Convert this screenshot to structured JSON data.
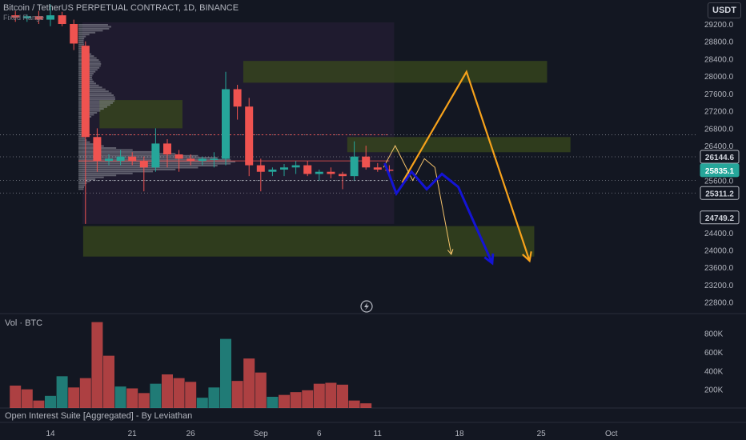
{
  "header": {
    "title": "Bitcoin / TetherUS PERPETUAL CONTRACT, 1D, BINANCE",
    "subtitle": "Fixed Range",
    "currency_button": "USDT"
  },
  "colors": {
    "background": "#131722",
    "up": "#26a69a",
    "down": "#ef5350",
    "zone": "#3a4a1c",
    "orange_path": "#f7a21b",
    "blue_path": "#1414d4",
    "profile": "#9598a1"
  },
  "volume_pane": {
    "title": "Vol · BTC"
  },
  "oi_pane": {
    "title": "Open Interest Suite [Aggregated] - By Leviathan"
  },
  "chart_data": [
    {
      "type": "candlestick",
      "title": "Bitcoin / TetherUS PERPETUAL CONTRACT, 1D, BINANCE",
      "ylim": [
        22500,
        29400
      ],
      "y_ticks": [
        29200,
        28800,
        28400,
        28000,
        27600,
        27200,
        26800,
        26400,
        25600,
        24400,
        24000,
        23600,
        23200,
        22800
      ],
      "price_labels": [
        {
          "value": "26144.6",
          "price": 26144.6,
          "style": "level"
        },
        {
          "value": "25835.1",
          "price": 25835.1,
          "style": "current"
        },
        {
          "value": "25311.2",
          "price": 25311.2,
          "style": "level"
        },
        {
          "value": "24749.2",
          "price": 24749.2,
          "style": "level"
        }
      ],
      "x_ticks": [
        {
          "label": "14",
          "day": 14
        },
        {
          "label": "21",
          "day": 21
        },
        {
          "label": "26",
          "day": 26
        },
        {
          "label": "Sep",
          "day": 32
        },
        {
          "label": "6",
          "day": 37
        },
        {
          "label": "11",
          "day": 42
        },
        {
          "label": "18",
          "day": 49
        },
        {
          "label": "25",
          "day": 56
        },
        {
          "label": "Oct",
          "day": 62
        }
      ],
      "candles": [
        {
          "day": 11,
          "o": 29400,
          "h": 29500,
          "l": 29250,
          "c": 29350
        },
        {
          "day": 12,
          "o": 29330,
          "h": 29420,
          "l": 29250,
          "c": 29380
        },
        {
          "day": 13,
          "o": 29380,
          "h": 29500,
          "l": 29200,
          "c": 29300
        },
        {
          "day": 14,
          "o": 29300,
          "h": 29650,
          "l": 29150,
          "c": 29400
        },
        {
          "day": 15,
          "o": 29400,
          "h": 29480,
          "l": 29150,
          "c": 29200
        },
        {
          "day": 16,
          "o": 29200,
          "h": 29300,
          "l": 28600,
          "c": 28750
        },
        {
          "day": 17,
          "o": 28700,
          "h": 28800,
          "l": 24600,
          "c": 26600
        },
        {
          "day": 18,
          "o": 26600,
          "h": 26800,
          "l": 25800,
          "c": 26050
        },
        {
          "day": 19,
          "o": 26050,
          "h": 26200,
          "l": 25950,
          "c": 26100
        },
        {
          "day": 20,
          "o": 26050,
          "h": 26300,
          "l": 25950,
          "c": 26150
        },
        {
          "day": 21,
          "o": 26150,
          "h": 26250,
          "l": 25950,
          "c": 26050
        },
        {
          "day": 22,
          "o": 26050,
          "h": 26150,
          "l": 25350,
          "c": 25900
        },
        {
          "day": 23,
          "o": 25900,
          "h": 26800,
          "l": 25800,
          "c": 26450
        },
        {
          "day": 24,
          "o": 26450,
          "h": 26550,
          "l": 25900,
          "c": 26200
        },
        {
          "day": 25,
          "o": 26200,
          "h": 26300,
          "l": 25800,
          "c": 26100
        },
        {
          "day": 26,
          "o": 26100,
          "h": 26200,
          "l": 25950,
          "c": 26050
        },
        {
          "day": 27,
          "o": 26050,
          "h": 26150,
          "l": 25950,
          "c": 26100
        },
        {
          "day": 28,
          "o": 26100,
          "h": 26250,
          "l": 25900,
          "c": 26100
        },
        {
          "day": 29,
          "o": 26100,
          "h": 28100,
          "l": 25950,
          "c": 27700
        },
        {
          "day": 30,
          "o": 27700,
          "h": 27800,
          "l": 27000,
          "c": 27300
        },
        {
          "day": 31,
          "o": 27300,
          "h": 27500,
          "l": 25700,
          "c": 25950
        },
        {
          "day": 32,
          "o": 25950,
          "h": 26100,
          "l": 25350,
          "c": 25800
        },
        {
          "day": 33,
          "o": 25800,
          "h": 25900,
          "l": 25700,
          "c": 25850
        },
        {
          "day": 34,
          "o": 25850,
          "h": 25980,
          "l": 25700,
          "c": 25900
        },
        {
          "day": 35,
          "o": 25900,
          "h": 26050,
          "l": 25750,
          "c": 25950
        },
        {
          "day": 36,
          "o": 25950,
          "h": 26050,
          "l": 25700,
          "c": 25750
        },
        {
          "day": 37,
          "o": 25750,
          "h": 25850,
          "l": 25600,
          "c": 25800
        },
        {
          "day": 38,
          "o": 25800,
          "h": 25900,
          "l": 25650,
          "c": 25750
        },
        {
          "day": 39,
          "o": 25750,
          "h": 25800,
          "l": 25400,
          "c": 25700
        },
        {
          "day": 40,
          "o": 25700,
          "h": 26500,
          "l": 25600,
          "c": 26150
        },
        {
          "day": 41,
          "o": 26150,
          "h": 26400,
          "l": 25850,
          "c": 25900
        },
        {
          "day": 42,
          "o": 25900,
          "h": 26000,
          "l": 25800,
          "c": 25850
        },
        {
          "day": 43,
          "o": 25850,
          "h": 25950,
          "l": 25700,
          "c": 25830
        }
      ],
      "zones": [
        {
          "x0": 30.5,
          "x1": 56.5,
          "p0": 28350,
          "p1": 27850
        },
        {
          "x0": 18.2,
          "x1": 25.3,
          "p0": 27450,
          "p1": 26800
        },
        {
          "x0": 39.4,
          "x1": 58.5,
          "p0": 26600,
          "p1": 26250
        },
        {
          "x0": 16.8,
          "x1": 55.4,
          "p0": 24550,
          "p1": 23850
        }
      ],
      "dotted_levels": [
        26650,
        26144.6,
        25600,
        25311.2
      ],
      "projections": [
        {
          "name": "",
          "color": "orange",
          "width": 2.2,
          "points": [
            [
              44.1,
              25550
            ],
            [
              49.6,
              28100
            ],
            [
              55.0,
              23750
            ]
          ]
        },
        {
          "name": "",
          "color": "yellow",
          "width": 1,
          "points": [
            [
              42.5,
              25900
            ],
            [
              43.5,
              26400
            ],
            [
              45.0,
              25600
            ],
            [
              46.0,
              26100
            ],
            [
              46.9,
              25900
            ],
            [
              48.3,
              23900
            ]
          ]
        },
        {
          "name": "",
          "color": "blue",
          "width": 3,
          "points": [
            [
              42.6,
              26000
            ],
            [
              43.6,
              25300
            ],
            [
              44.9,
              25800
            ],
            [
              46.2,
              25400
            ],
            [
              47.5,
              25750
            ],
            [
              48.9,
              25450
            ],
            [
              50.3,
              24600
            ],
            [
              51.8,
              23700
            ]
          ]
        }
      ],
      "volume": {
        "ylim": [
          0,
          1000
        ],
        "unit": "K",
        "y_ticks": [
          800,
          600,
          400,
          200
        ],
        "bars": [
          {
            "day": 11,
            "v": 240,
            "dir": "down"
          },
          {
            "day": 12,
            "v": 200,
            "dir": "down"
          },
          {
            "day": 13,
            "v": 80,
            "dir": "down"
          },
          {
            "day": 14,
            "v": 130,
            "dir": "up"
          },
          {
            "day": 15,
            "v": 340,
            "dir": "up"
          },
          {
            "day": 16,
            "v": 220,
            "dir": "down"
          },
          {
            "day": 17,
            "v": 320,
            "dir": "down"
          },
          {
            "day": 18,
            "v": 920,
            "dir": "down"
          },
          {
            "day": 19,
            "v": 560,
            "dir": "down"
          },
          {
            "day": 20,
            "v": 230,
            "dir": "up"
          },
          {
            "day": 21,
            "v": 210,
            "dir": "down"
          },
          {
            "day": 22,
            "v": 160,
            "dir": "down"
          },
          {
            "day": 23,
            "v": 260,
            "dir": "up"
          },
          {
            "day": 24,
            "v": 360,
            "dir": "down"
          },
          {
            "day": 25,
            "v": 320,
            "dir": "down"
          },
          {
            "day": 26,
            "v": 280,
            "dir": "down"
          },
          {
            "day": 27,
            "v": 110,
            "dir": "up"
          },
          {
            "day": 28,
            "v": 220,
            "dir": "up"
          },
          {
            "day": 29,
            "v": 740,
            "dir": "up"
          },
          {
            "day": 30,
            "v": 290,
            "dir": "down"
          },
          {
            "day": 31,
            "v": 530,
            "dir": "down"
          },
          {
            "day": 32,
            "v": 380,
            "dir": "down"
          },
          {
            "day": 33,
            "v": 120,
            "dir": "up"
          },
          {
            "day": 34,
            "v": 140,
            "dir": "down"
          },
          {
            "day": 35,
            "v": 170,
            "dir": "down"
          },
          {
            "day": 36,
            "v": 190,
            "dir": "down"
          },
          {
            "day": 37,
            "v": 260,
            "dir": "down"
          },
          {
            "day": 38,
            "v": 270,
            "dir": "down"
          },
          {
            "day": 39,
            "v": 250,
            "dir": "down"
          },
          {
            "day": 40,
            "v": 80,
            "dir": "down"
          },
          {
            "day": 41,
            "v": 50,
            "dir": "down"
          }
        ]
      }
    }
  ]
}
